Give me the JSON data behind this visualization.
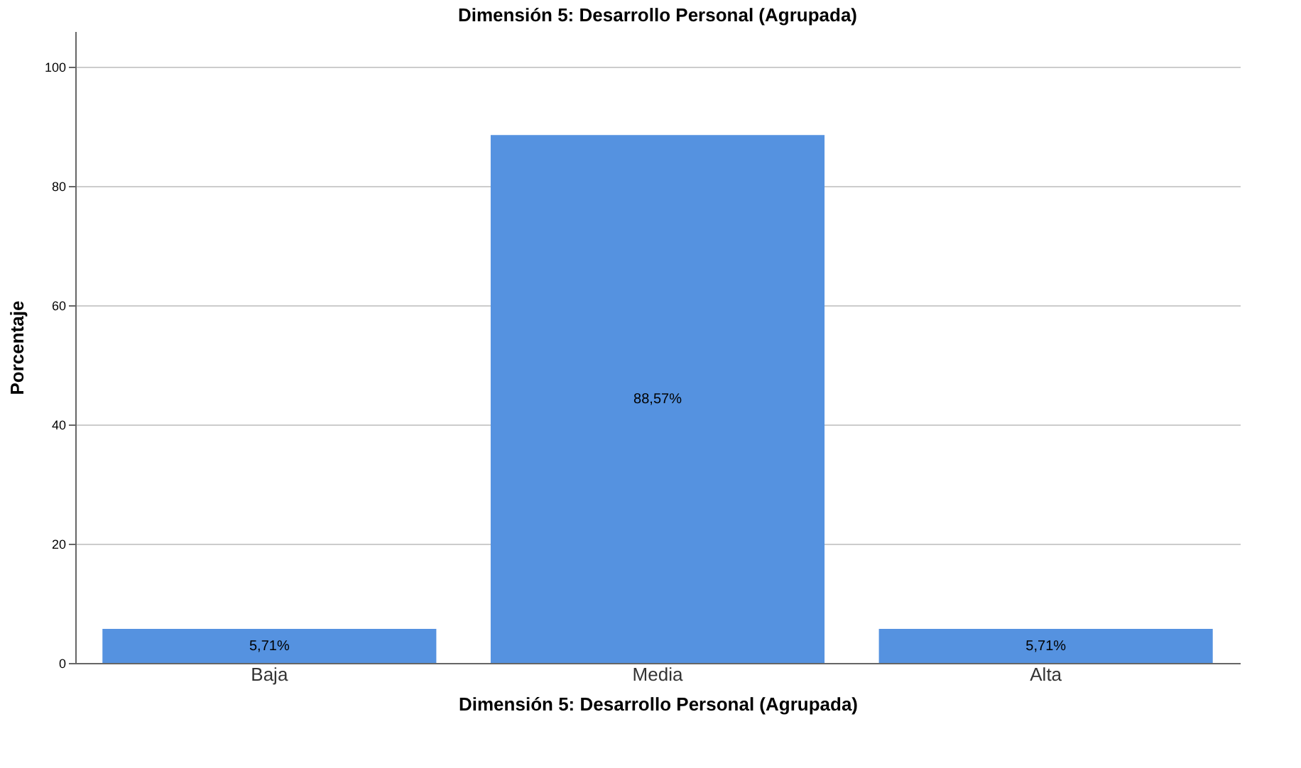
{
  "chart_data": {
    "type": "bar",
    "title": "Dimensión 5: Desarrollo Personal (Agrupada)",
    "xlabel": "Dimensión 5: Desarrollo Personal (Agrupada)",
    "ylabel": "Porcentaje",
    "categories": [
      "Baja",
      "Media",
      "Alta"
    ],
    "values": [
      5.71,
      88.57,
      5.71
    ],
    "value_labels": [
      "5,71%",
      "88,57%",
      "5,71%"
    ],
    "color": "#5592e0",
    "ylim": [
      0,
      106
    ],
    "yticks": [
      0,
      20,
      40,
      60,
      80,
      100
    ],
    "grid": "y"
  }
}
